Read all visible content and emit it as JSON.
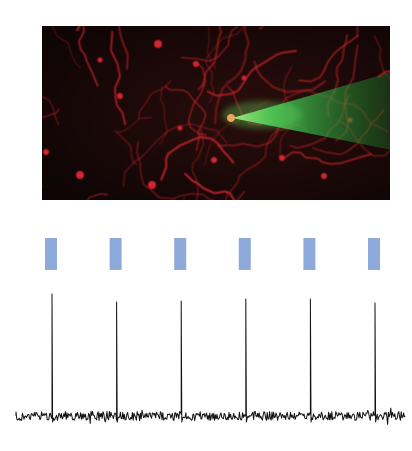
{
  "micrograph": {
    "background_color": "#130808",
    "neuron_stain_color": "#d8262e",
    "electrode_color": "#5fd35a",
    "soma_color": "#f0a35a"
  },
  "stimulus": {
    "pulse_count": 6,
    "pulse_color": "#8eaadb"
  },
  "trace": {
    "spike_count": 6,
    "line_color": "#111111"
  }
}
